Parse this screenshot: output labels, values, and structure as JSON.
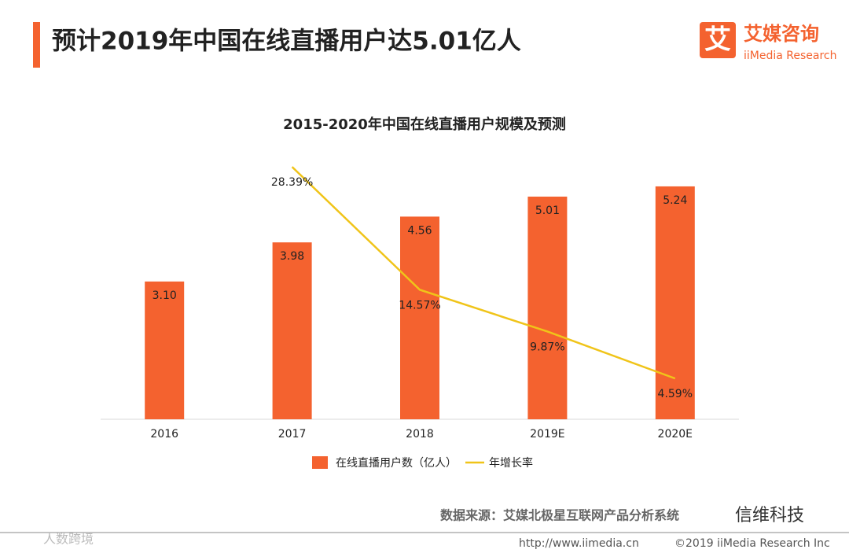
{
  "header": {
    "title": "预计2019年中国在线直播用户达5.01亿人",
    "logo_icon": "艾",
    "logo": "艾媒咨询",
    "logo_sub": "iiMedia Research"
  },
  "chart_data": {
    "type": "bar",
    "title": "2015-2020年中国在线直播用户规模及预测",
    "categories": [
      "2016",
      "2017",
      "2018",
      "2019E",
      "2020E"
    ],
    "ylim": [
      0,
      6
    ],
    "y2lim": [
      0,
      30
    ],
    "series": [
      {
        "name": "在线直播用户数（亿人）",
        "color": "#f4622f",
        "values": [
          3.1,
          3.98,
          4.56,
          5.01,
          5.24
        ],
        "value_labels": [
          "3.10",
          "3.98",
          "4.56",
          "5.01",
          "5.24"
        ]
      },
      {
        "name": "年增长率",
        "type": "line",
        "axis": "y2",
        "color": "#f0c419",
        "values": [
          null,
          28.39,
          14.57,
          9.87,
          4.59
        ],
        "value_labels": [
          null,
          "28.39%",
          "14.57%",
          "9.87%",
          "4.59%"
        ]
      }
    ]
  },
  "footer": {
    "source": "数据来源：艾媒北极星互联网产品分析系统",
    "watermark": "信维科技",
    "watermark2": "人数跨境",
    "url": "http://www.iimedia.cn",
    "copyright": "©2019 iiMedia Research Inc"
  }
}
